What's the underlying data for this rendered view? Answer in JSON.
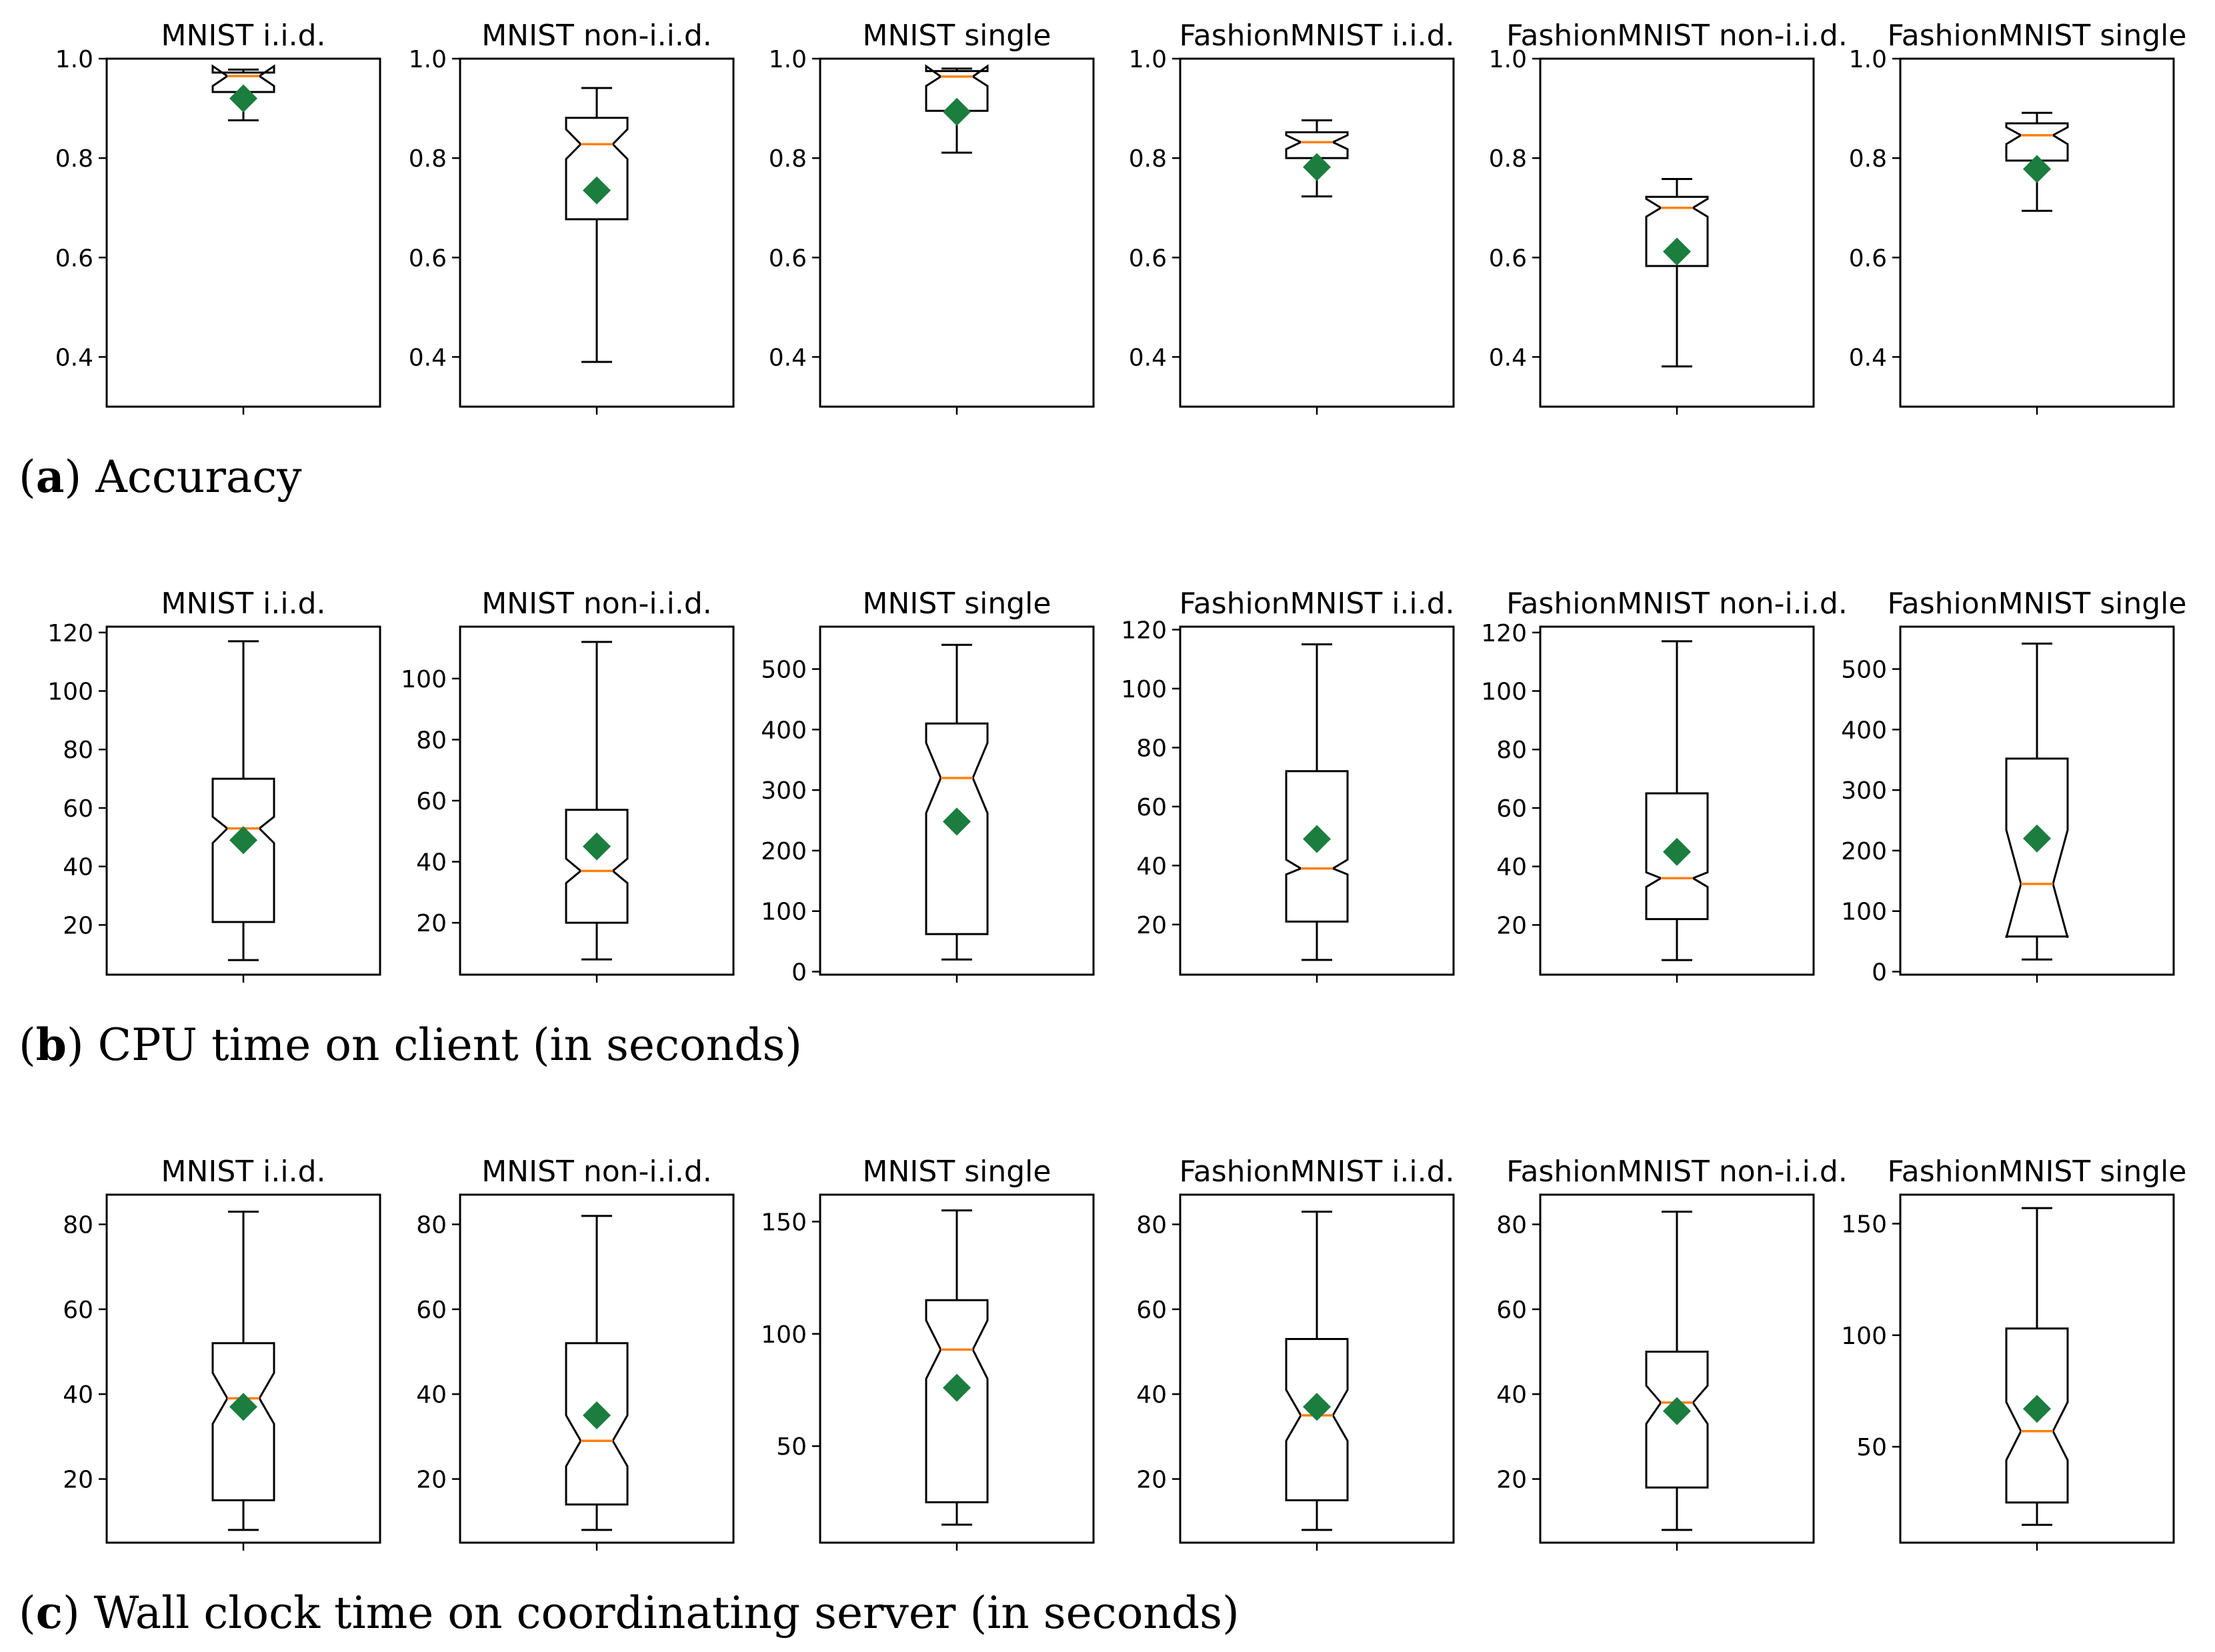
{
  "colors": {
    "median": "#ff7f0e",
    "mean": "#1b7d3e",
    "box": "#000000"
  },
  "rows": [
    {
      "caption_letter": "a",
      "caption_text": "Accuracy",
      "chart_data": [
        {
          "type": "box",
          "title": "MNIST i.i.d.",
          "ylim": [
            0.3,
            1.0
          ],
          "yticks": [
            0.4,
            0.6,
            0.8,
            1.0
          ],
          "ytick_labels": [
            "0.4",
            "0.6",
            "0.8",
            "1.0"
          ],
          "whisker_low": 0.876,
          "q1": 0.933,
          "median": 0.965,
          "q3": 0.972,
          "whisker_high": 0.978,
          "mean": 0.92,
          "notch_low": 0.945,
          "notch_high": 0.985
        },
        {
          "type": "box",
          "title": "MNIST non-i.i.d.",
          "ylim": [
            0.3,
            1.0
          ],
          "yticks": [
            0.4,
            0.6,
            0.8,
            1.0
          ],
          "ytick_labels": [
            "0.4",
            "0.6",
            "0.8",
            "1.0"
          ],
          "whisker_low": 0.39,
          "q1": 0.677,
          "median": 0.828,
          "q3": 0.881,
          "whisker_high": 0.941,
          "mean": 0.735,
          "notch_low": 0.798,
          "notch_high": 0.858
        },
        {
          "type": "box",
          "title": "MNIST single",
          "ylim": [
            0.3,
            1.0
          ],
          "yticks": [
            0.4,
            0.6,
            0.8,
            1.0
          ],
          "ytick_labels": [
            "0.4",
            "0.6",
            "0.8",
            "1.0"
          ],
          "whisker_low": 0.811,
          "q1": 0.895,
          "median": 0.964,
          "q3": 0.975,
          "whisker_high": 0.98,
          "mean": 0.893,
          "notch_low": 0.945,
          "notch_high": 0.985
        },
        {
          "type": "box",
          "title": "FashionMNIST i.i.d.",
          "ylim": [
            0.3,
            1.0
          ],
          "yticks": [
            0.4,
            0.6,
            0.8,
            1.0
          ],
          "ytick_labels": [
            "0.4",
            "0.6",
            "0.8",
            "1.0"
          ],
          "whisker_low": 0.723,
          "q1": 0.8,
          "median": 0.832,
          "q3": 0.852,
          "whisker_high": 0.876,
          "mean": 0.782,
          "notch_low": 0.818,
          "notch_high": 0.846
        },
        {
          "type": "box",
          "title": "FashionMNIST non-i.i.d.",
          "ylim": [
            0.3,
            1.0
          ],
          "yticks": [
            0.4,
            0.6,
            0.8,
            1.0
          ],
          "ytick_labels": [
            "0.4",
            "0.6",
            "0.8",
            "1.0"
          ],
          "whisker_low": 0.381,
          "q1": 0.583,
          "median": 0.7,
          "q3": 0.722,
          "whisker_high": 0.758,
          "mean": 0.612,
          "notch_low": 0.682,
          "notch_high": 0.718
        },
        {
          "type": "box",
          "title": "FashionMNIST single",
          "ylim": [
            0.3,
            1.0
          ],
          "yticks": [
            0.4,
            0.6,
            0.8,
            1.0
          ],
          "ytick_labels": [
            "0.4",
            "0.6",
            "0.8",
            "1.0"
          ],
          "whisker_low": 0.694,
          "q1": 0.795,
          "median": 0.846,
          "q3": 0.87,
          "whisker_high": 0.891,
          "mean": 0.778,
          "notch_low": 0.828,
          "notch_high": 0.862
        }
      ]
    },
    {
      "caption_letter": "b",
      "caption_text": "CPU time on client (in seconds)",
      "chart_data": [
        {
          "type": "box",
          "title": "MNIST i.i.d.",
          "ylim": [
            3,
            122
          ],
          "yticks": [
            20,
            40,
            60,
            80,
            100,
            120
          ],
          "ytick_labels": [
            "20",
            "40",
            "60",
            "80",
            "100",
            "120"
          ],
          "whisker_low": 8,
          "q1": 21,
          "median": 53,
          "q3": 70,
          "whisker_high": 117,
          "mean": 49,
          "notch_low": 48,
          "notch_high": 57
        },
        {
          "type": "box",
          "title": "MNIST non-i.i.d.",
          "ylim": [
            3,
            117
          ],
          "yticks": [
            20,
            40,
            60,
            80,
            100
          ],
          "ytick_labels": [
            "20",
            "40",
            "60",
            "80",
            "100"
          ],
          "whisker_low": 8,
          "q1": 20,
          "median": 37,
          "q3": 57,
          "whisker_high": 112,
          "mean": 45,
          "notch_low": 33,
          "notch_high": 41
        },
        {
          "type": "box",
          "title": "MNIST single",
          "ylim": [
            -5,
            570
          ],
          "yticks": [
            0,
            100,
            200,
            300,
            400,
            500
          ],
          "ytick_labels": [
            "0",
            "100",
            "200",
            "300",
            "400",
            "500"
          ],
          "whisker_low": 20,
          "q1": 62,
          "median": 320,
          "q3": 410,
          "whisker_high": 540,
          "mean": 248,
          "notch_low": 262,
          "notch_high": 378
        },
        {
          "type": "box",
          "title": "FashionMNIST i.i.d.",
          "ylim": [
            3,
            121
          ],
          "yticks": [
            20,
            40,
            60,
            80,
            100,
            120
          ],
          "ytick_labels": [
            "20",
            "40",
            "60",
            "80",
            "100",
            "120"
          ],
          "whisker_low": 8,
          "q1": 21,
          "median": 39,
          "q3": 72,
          "whisker_high": 115,
          "mean": 49,
          "notch_low": 37,
          "notch_high": 42
        },
        {
          "type": "box",
          "title": "FashionMNIST non-i.i.d.",
          "ylim": [
            3,
            122
          ],
          "yticks": [
            20,
            40,
            60,
            80,
            100,
            120
          ],
          "ytick_labels": [
            "20",
            "40",
            "60",
            "80",
            "100",
            "120"
          ],
          "whisker_low": 8,
          "q1": 22,
          "median": 36,
          "q3": 65,
          "whisker_high": 117,
          "mean": 45,
          "notch_low": 33,
          "notch_high": 38
        },
        {
          "type": "box",
          "title": "FashionMNIST single",
          "ylim": [
            -5,
            570
          ],
          "yticks": [
            0,
            100,
            200,
            300,
            400,
            500
          ],
          "ytick_labels": [
            "0",
            "100",
            "200",
            "300",
            "400",
            "500"
          ],
          "whisker_low": 20,
          "q1": 58,
          "median": 145,
          "q3": 352,
          "whisker_high": 542,
          "mean": 220,
          "notch_low": 56,
          "notch_high": 234
        }
      ]
    },
    {
      "caption_letter": "c",
      "caption_text": "Wall clock time on coordinating server (in seconds)",
      "chart_data": [
        {
          "type": "box",
          "title": "MNIST i.i.d.",
          "ylim": [
            5,
            87
          ],
          "yticks": [
            20,
            40,
            60,
            80
          ],
          "ytick_labels": [
            "20",
            "40",
            "60",
            "80"
          ],
          "whisker_low": 8,
          "q1": 15,
          "median": 39,
          "q3": 52,
          "whisker_high": 83,
          "mean": 37,
          "notch_low": 33,
          "notch_high": 45
        },
        {
          "type": "box",
          "title": "MNIST non-i.i.d.",
          "ylim": [
            5,
            87
          ],
          "yticks": [
            20,
            40,
            60,
            80
          ],
          "ytick_labels": [
            "20",
            "40",
            "60",
            "80"
          ],
          "whisker_low": 8,
          "q1": 14,
          "median": 29,
          "q3": 52,
          "whisker_high": 82,
          "mean": 35,
          "notch_low": 23,
          "notch_high": 35
        },
        {
          "type": "box",
          "title": "MNIST single",
          "ylim": [
            7,
            162
          ],
          "yticks": [
            50,
            100,
            150
          ],
          "ytick_labels": [
            "50",
            "100",
            "150"
          ],
          "whisker_low": 15,
          "q1": 25,
          "median": 93,
          "q3": 115,
          "whisker_high": 155,
          "mean": 76,
          "notch_low": 80,
          "notch_high": 106
        },
        {
          "type": "box",
          "title": "FashionMNIST i.i.d.",
          "ylim": [
            5,
            87
          ],
          "yticks": [
            20,
            40,
            60,
            80
          ],
          "ytick_labels": [
            "20",
            "40",
            "60",
            "80"
          ],
          "whisker_low": 8,
          "q1": 15,
          "median": 35,
          "q3": 53,
          "whisker_high": 83,
          "mean": 37,
          "notch_low": 29,
          "notch_high": 41
        },
        {
          "type": "box",
          "title": "FashionMNIST non-i.i.d.",
          "ylim": [
            5,
            87
          ],
          "yticks": [
            20,
            40,
            60,
            80
          ],
          "ytick_labels": [
            "20",
            "40",
            "60",
            "80"
          ],
          "whisker_low": 8,
          "q1": 18,
          "median": 38,
          "q3": 50,
          "whisker_high": 83,
          "mean": 36,
          "notch_low": 33,
          "notch_high": 42
        },
        {
          "type": "box",
          "title": "FashionMNIST single",
          "ylim": [
            7,
            163
          ],
          "yticks": [
            50,
            100,
            150
          ],
          "ytick_labels": [
            "50",
            "100",
            "150"
          ],
          "whisker_low": 15,
          "q1": 25,
          "median": 57,
          "q3": 103,
          "whisker_high": 157,
          "mean": 67,
          "notch_low": 44,
          "notch_high": 70
        }
      ]
    }
  ]
}
